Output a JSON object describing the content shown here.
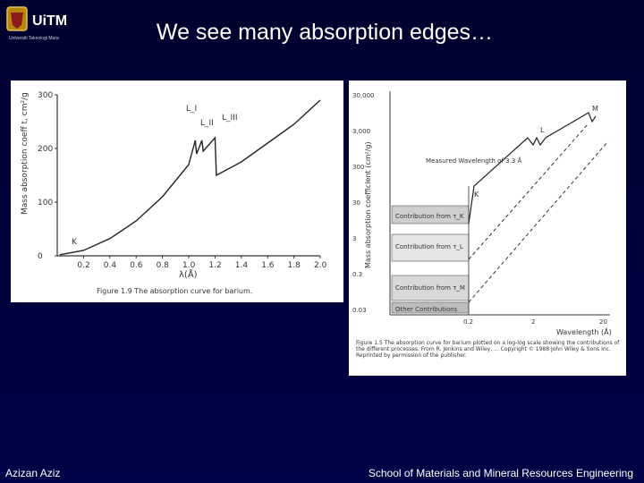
{
  "slide": {
    "title": "We see many absorption edges…",
    "logo_text": "UiTM",
    "logo_subtext": "Universiti Teknologi Mara"
  },
  "footer": {
    "left": "Azizan Aziz",
    "right": "School of Materials and Mineral Resources Engineering"
  },
  "colors": {
    "background": "#00003a",
    "text": "#ffffff",
    "figure_bg": "#ffffff",
    "ink": "#333333"
  },
  "figure_left": {
    "caption": "Figure 1.9  The absorption curve for barium.",
    "chart_data": {
      "type": "line",
      "title": "",
      "xlabel": "λ(Å)",
      "ylabel": "Mass absorption coeff t, cm²/g",
      "xlim": [
        0,
        2.0
      ],
      "ylim": [
        0,
        300
      ],
      "x_ticks": [
        "0.2",
        "0.4",
        "0.6",
        "0.8",
        "1.0",
        "1.2",
        "1.4",
        "1.6",
        "1.8",
        "2.0"
      ],
      "y_ticks": [
        "0",
        "100",
        "200",
        "300"
      ],
      "edge_labels": [
        "K",
        "L_I",
        "L_II",
        "L_III"
      ],
      "series": [
        {
          "values": [
            [
              0.02,
              2
            ],
            [
              0.2,
              10
            ],
            [
              0.4,
              32
            ],
            [
              0.6,
              65
            ],
            [
              0.8,
              110
            ],
            [
              1.0,
              170
            ],
            [
              1.05,
              215
            ],
            [
              1.06,
              190
            ],
            [
              1.1,
              215
            ],
            [
              1.11,
              195
            ],
            [
              1.2,
              220
            ],
            [
              1.21,
              150
            ],
            [
              1.4,
              175
            ],
            [
              1.6,
              210
            ],
            [
              1.8,
              245
            ],
            [
              2.0,
              290
            ]
          ]
        }
      ]
    }
  },
  "figure_right": {
    "caption": "Figure 1.5  The absorption curve for barium plotted on a log-log scale showing the contributions of the different processes. From R. Jenkins and Wiley, ... Copyright © 1988 John Wiley & Sons Inc. Reprinted by permission of the publisher.",
    "chart_data": {
      "type": "line",
      "title": "",
      "xlabel": "Wavelength (Å)",
      "ylabel": "Mass absorption coefficient (cm²/g)",
      "y_ticks": [
        "30,000",
        "3,000",
        "300",
        "30",
        "3",
        "0.3",
        "0.03"
      ],
      "x_ticks": [
        "0.2",
        "2",
        "20"
      ],
      "edge_labels": [
        "K",
        "L",
        "M"
      ],
      "annotations": [
        "Measured Wavelength of 3.3 Å",
        "Contribution from τ_K",
        "Contribution from τ_L",
        "Contribution from τ_M",
        "Other Contributions"
      ],
      "series": []
    }
  }
}
